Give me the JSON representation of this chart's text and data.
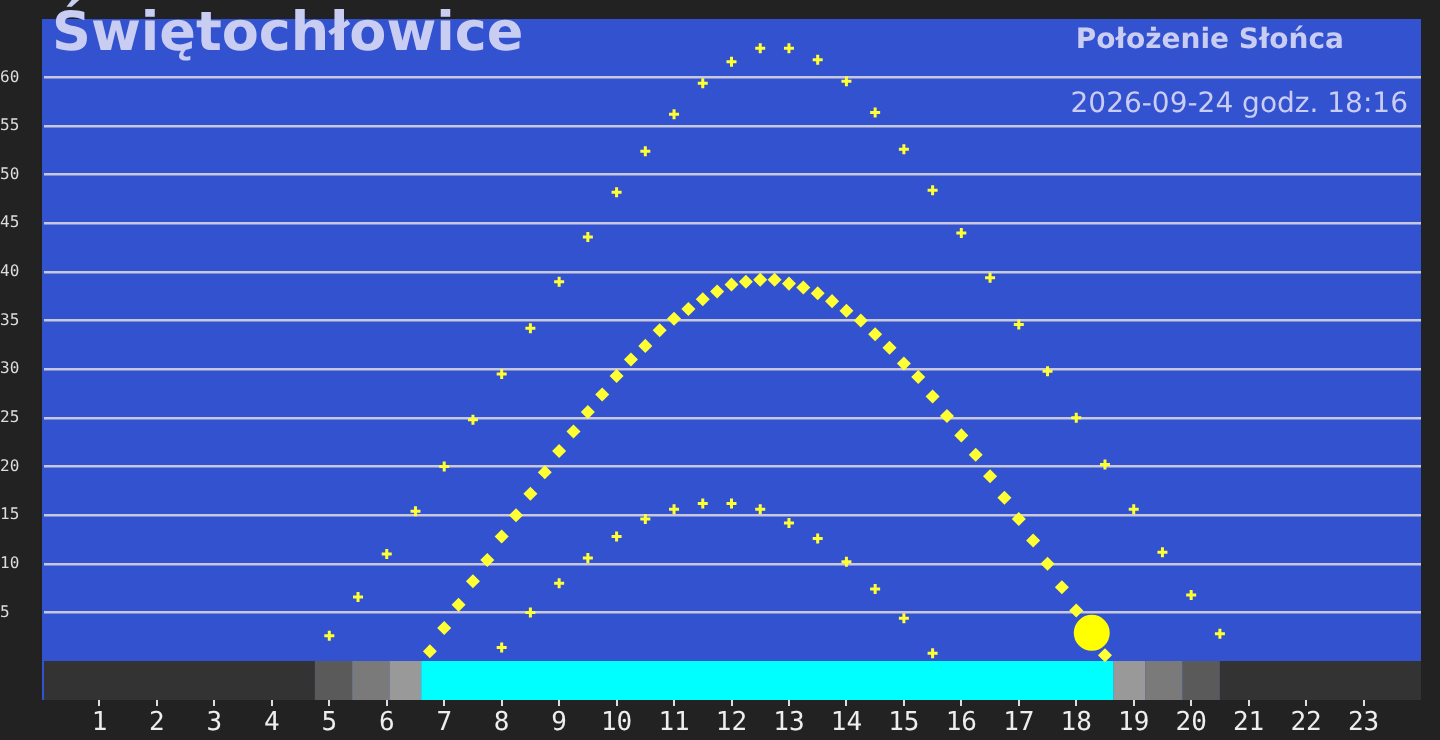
{
  "chart_data": {
    "type": "scatter",
    "title": "Świętochłowice",
    "subtitle": "Położenie Słońca",
    "annotations": [
      "2026-09-24 godz. 18:16"
    ],
    "xlim": [
      0,
      24
    ],
    "xticks": [
      1,
      2,
      3,
      4,
      5,
      6,
      7,
      8,
      9,
      10,
      11,
      12,
      13,
      14,
      15,
      16,
      17,
      18,
      19,
      20,
      21,
      22,
      23
    ],
    "ylim": [
      -4,
      66
    ],
    "yticks": [
      5,
      10,
      15,
      20,
      25,
      30,
      35,
      40,
      45,
      50,
      55,
      60
    ],
    "grid": "y",
    "legend": false,
    "series": [
      {
        "color": "#ffff33",
        "marker": "cross",
        "x": [
          5,
          5.5,
          6,
          6.5,
          7,
          7.5,
          8,
          8.5,
          9,
          9.5,
          10,
          10.5,
          11,
          11.5,
          12,
          12.5,
          13,
          13.5,
          14,
          14.5,
          15,
          15.5,
          16,
          16.5,
          17,
          17.5,
          18,
          18.5,
          19,
          19.5,
          20,
          20.5
        ],
        "values": [
          2.6,
          6.6,
          11.0,
          15.4,
          20.0,
          24.8,
          29.5,
          34.2,
          39.0,
          43.6,
          48.2,
          52.4,
          56.2,
          59.4,
          61.6,
          63.0,
          63.0,
          61.8,
          59.6,
          56.4,
          52.6,
          48.4,
          44.0,
          39.4,
          34.6,
          29.8,
          25.0,
          20.2,
          15.6,
          11.2,
          6.8,
          2.8
        ]
      },
      {
        "color": "#ffff33",
        "marker": "cross",
        "x": [
          8,
          8.5,
          9,
          9.5,
          10,
          10.5,
          11,
          11.5,
          12,
          12.5,
          13,
          13.5,
          14,
          14.5,
          15,
          15.5
        ],
        "values": [
          1.4,
          5.0,
          8.0,
          10.6,
          12.8,
          14.6,
          15.6,
          16.2,
          16.2,
          15.6,
          14.2,
          12.6,
          10.2,
          7.4,
          4.4,
          0.8
        ]
      },
      {
        "color": "#ffff33",
        "marker": "diamond",
        "x": [
          6.75,
          7,
          7.25,
          7.5,
          7.75,
          8,
          8.25,
          8.5,
          8.75,
          9,
          9.25,
          9.5,
          9.75,
          10,
          10.25,
          10.5,
          10.75,
          11,
          11.25,
          11.5,
          11.75,
          12,
          12.25,
          12.5,
          12.75,
          13,
          13.25,
          13.5,
          13.75,
          14,
          14.25,
          14.5,
          14.75,
          15,
          15.25,
          15.5,
          15.75,
          16,
          16.25,
          16.5,
          16.75,
          17,
          17.25,
          17.5,
          17.75,
          18,
          18.5
        ],
        "values": [
          1.0,
          3.4,
          5.8,
          8.2,
          10.4,
          12.8,
          15.0,
          17.2,
          19.4,
          21.6,
          23.6,
          25.6,
          27.4,
          29.3,
          31.0,
          32.4,
          34.0,
          35.2,
          36.2,
          37.2,
          38.0,
          38.7,
          39.0,
          39.2,
          39.2,
          38.8,
          38.4,
          37.8,
          37.0,
          36.0,
          35.0,
          33.6,
          32.2,
          30.6,
          29.2,
          27.2,
          25.2,
          23.2,
          21.2,
          19.0,
          16.8,
          14.6,
          12.4,
          10.0,
          7.6,
          5.2,
          0.6
        ]
      },
      {
        "color": "#ffff00",
        "marker": "circle",
        "x": [
          18.27
        ],
        "values": [
          2.9
        ]
      }
    ],
    "bands": [
      {
        "axis": "x",
        "from": 0,
        "to": 4.75,
        "color": "#333333"
      },
      {
        "axis": "x",
        "from": 4.75,
        "to": 5.4,
        "color": "#5a5a5a"
      },
      {
        "axis": "x",
        "from": 5.4,
        "to": 6.05,
        "color": "#7a7a7a"
      },
      {
        "axis": "x",
        "from": 6.05,
        "to": 6.6,
        "color": "#999999"
      },
      {
        "axis": "x",
        "from": 6.6,
        "to": 18.65,
        "color": "#00ffff"
      },
      {
        "axis": "x",
        "from": 18.65,
        "to": 19.2,
        "color": "#999999"
      },
      {
        "axis": "x",
        "from": 19.2,
        "to": 19.85,
        "color": "#7a7a7a"
      },
      {
        "axis": "x",
        "from": 19.85,
        "to": 20.5,
        "color": "#5a5a5a"
      },
      {
        "axis": "x",
        "from": 20.5,
        "to": 24,
        "color": "#333333"
      }
    ]
  }
}
